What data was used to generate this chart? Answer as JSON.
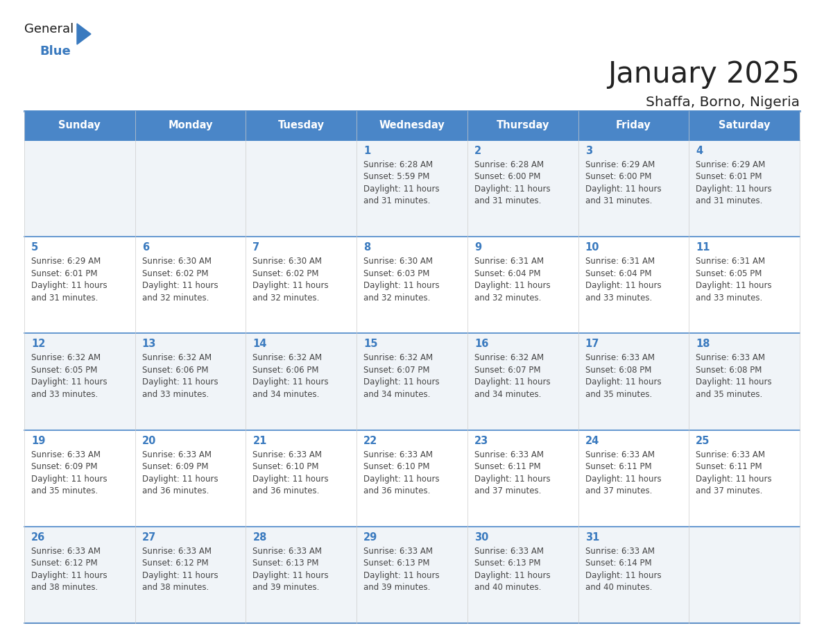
{
  "title": "January 2025",
  "subtitle": "Shaffa, Borno, Nigeria",
  "days_of_week": [
    "Sunday",
    "Monday",
    "Tuesday",
    "Wednesday",
    "Thursday",
    "Friday",
    "Saturday"
  ],
  "header_bg": "#4a86c8",
  "header_text": "#ffffff",
  "row_bg": [
    "#f0f4f8",
    "#ffffff"
  ],
  "day_num_color": "#3a7abf",
  "text_color": "#444444",
  "line_color": "#4a86c8",
  "calendar_data": [
    {
      "day": 1,
      "col": 3,
      "row": 0,
      "sunrise": "6:28 AM",
      "sunset": "5:59 PM",
      "daylight": "11 hours\nand 31 minutes."
    },
    {
      "day": 2,
      "col": 4,
      "row": 0,
      "sunrise": "6:28 AM",
      "sunset": "6:00 PM",
      "daylight": "11 hours\nand 31 minutes."
    },
    {
      "day": 3,
      "col": 5,
      "row": 0,
      "sunrise": "6:29 AM",
      "sunset": "6:00 PM",
      "daylight": "11 hours\nand 31 minutes."
    },
    {
      "day": 4,
      "col": 6,
      "row": 0,
      "sunrise": "6:29 AM",
      "sunset": "6:01 PM",
      "daylight": "11 hours\nand 31 minutes."
    },
    {
      "day": 5,
      "col": 0,
      "row": 1,
      "sunrise": "6:29 AM",
      "sunset": "6:01 PM",
      "daylight": "11 hours\nand 31 minutes."
    },
    {
      "day": 6,
      "col": 1,
      "row": 1,
      "sunrise": "6:30 AM",
      "sunset": "6:02 PM",
      "daylight": "11 hours\nand 32 minutes."
    },
    {
      "day": 7,
      "col": 2,
      "row": 1,
      "sunrise": "6:30 AM",
      "sunset": "6:02 PM",
      "daylight": "11 hours\nand 32 minutes."
    },
    {
      "day": 8,
      "col": 3,
      "row": 1,
      "sunrise": "6:30 AM",
      "sunset": "6:03 PM",
      "daylight": "11 hours\nand 32 minutes."
    },
    {
      "day": 9,
      "col": 4,
      "row": 1,
      "sunrise": "6:31 AM",
      "sunset": "6:04 PM",
      "daylight": "11 hours\nand 32 minutes."
    },
    {
      "day": 10,
      "col": 5,
      "row": 1,
      "sunrise": "6:31 AM",
      "sunset": "6:04 PM",
      "daylight": "11 hours\nand 33 minutes."
    },
    {
      "day": 11,
      "col": 6,
      "row": 1,
      "sunrise": "6:31 AM",
      "sunset": "6:05 PM",
      "daylight": "11 hours\nand 33 minutes."
    },
    {
      "day": 12,
      "col": 0,
      "row": 2,
      "sunrise": "6:32 AM",
      "sunset": "6:05 PM",
      "daylight": "11 hours\nand 33 minutes."
    },
    {
      "day": 13,
      "col": 1,
      "row": 2,
      "sunrise": "6:32 AM",
      "sunset": "6:06 PM",
      "daylight": "11 hours\nand 33 minutes."
    },
    {
      "day": 14,
      "col": 2,
      "row": 2,
      "sunrise": "6:32 AM",
      "sunset": "6:06 PM",
      "daylight": "11 hours\nand 34 minutes."
    },
    {
      "day": 15,
      "col": 3,
      "row": 2,
      "sunrise": "6:32 AM",
      "sunset": "6:07 PM",
      "daylight": "11 hours\nand 34 minutes."
    },
    {
      "day": 16,
      "col": 4,
      "row": 2,
      "sunrise": "6:32 AM",
      "sunset": "6:07 PM",
      "daylight": "11 hours\nand 34 minutes."
    },
    {
      "day": 17,
      "col": 5,
      "row": 2,
      "sunrise": "6:33 AM",
      "sunset": "6:08 PM",
      "daylight": "11 hours\nand 35 minutes."
    },
    {
      "day": 18,
      "col": 6,
      "row": 2,
      "sunrise": "6:33 AM",
      "sunset": "6:08 PM",
      "daylight": "11 hours\nand 35 minutes."
    },
    {
      "day": 19,
      "col": 0,
      "row": 3,
      "sunrise": "6:33 AM",
      "sunset": "6:09 PM",
      "daylight": "11 hours\nand 35 minutes."
    },
    {
      "day": 20,
      "col": 1,
      "row": 3,
      "sunrise": "6:33 AM",
      "sunset": "6:09 PM",
      "daylight": "11 hours\nand 36 minutes."
    },
    {
      "day": 21,
      "col": 2,
      "row": 3,
      "sunrise": "6:33 AM",
      "sunset": "6:10 PM",
      "daylight": "11 hours\nand 36 minutes."
    },
    {
      "day": 22,
      "col": 3,
      "row": 3,
      "sunrise": "6:33 AM",
      "sunset": "6:10 PM",
      "daylight": "11 hours\nand 36 minutes."
    },
    {
      "day": 23,
      "col": 4,
      "row": 3,
      "sunrise": "6:33 AM",
      "sunset": "6:11 PM",
      "daylight": "11 hours\nand 37 minutes."
    },
    {
      "day": 24,
      "col": 5,
      "row": 3,
      "sunrise": "6:33 AM",
      "sunset": "6:11 PM",
      "daylight": "11 hours\nand 37 minutes."
    },
    {
      "day": 25,
      "col": 6,
      "row": 3,
      "sunrise": "6:33 AM",
      "sunset": "6:11 PM",
      "daylight": "11 hours\nand 37 minutes."
    },
    {
      "day": 26,
      "col": 0,
      "row": 4,
      "sunrise": "6:33 AM",
      "sunset": "6:12 PM",
      "daylight": "11 hours\nand 38 minutes."
    },
    {
      "day": 27,
      "col": 1,
      "row": 4,
      "sunrise": "6:33 AM",
      "sunset": "6:12 PM",
      "daylight": "11 hours\nand 38 minutes."
    },
    {
      "day": 28,
      "col": 2,
      "row": 4,
      "sunrise": "6:33 AM",
      "sunset": "6:13 PM",
      "daylight": "11 hours\nand 39 minutes."
    },
    {
      "day": 29,
      "col": 3,
      "row": 4,
      "sunrise": "6:33 AM",
      "sunset": "6:13 PM",
      "daylight": "11 hours\nand 39 minutes."
    },
    {
      "day": 30,
      "col": 4,
      "row": 4,
      "sunrise": "6:33 AM",
      "sunset": "6:13 PM",
      "daylight": "11 hours\nand 40 minutes."
    },
    {
      "day": 31,
      "col": 5,
      "row": 4,
      "sunrise": "6:33 AM",
      "sunset": "6:14 PM",
      "daylight": "11 hours\nand 40 minutes."
    }
  ],
  "logo_color_general": "#1a1a1a",
  "logo_color_blue": "#3a7abf",
  "logo_triangle_color": "#3a7abf"
}
